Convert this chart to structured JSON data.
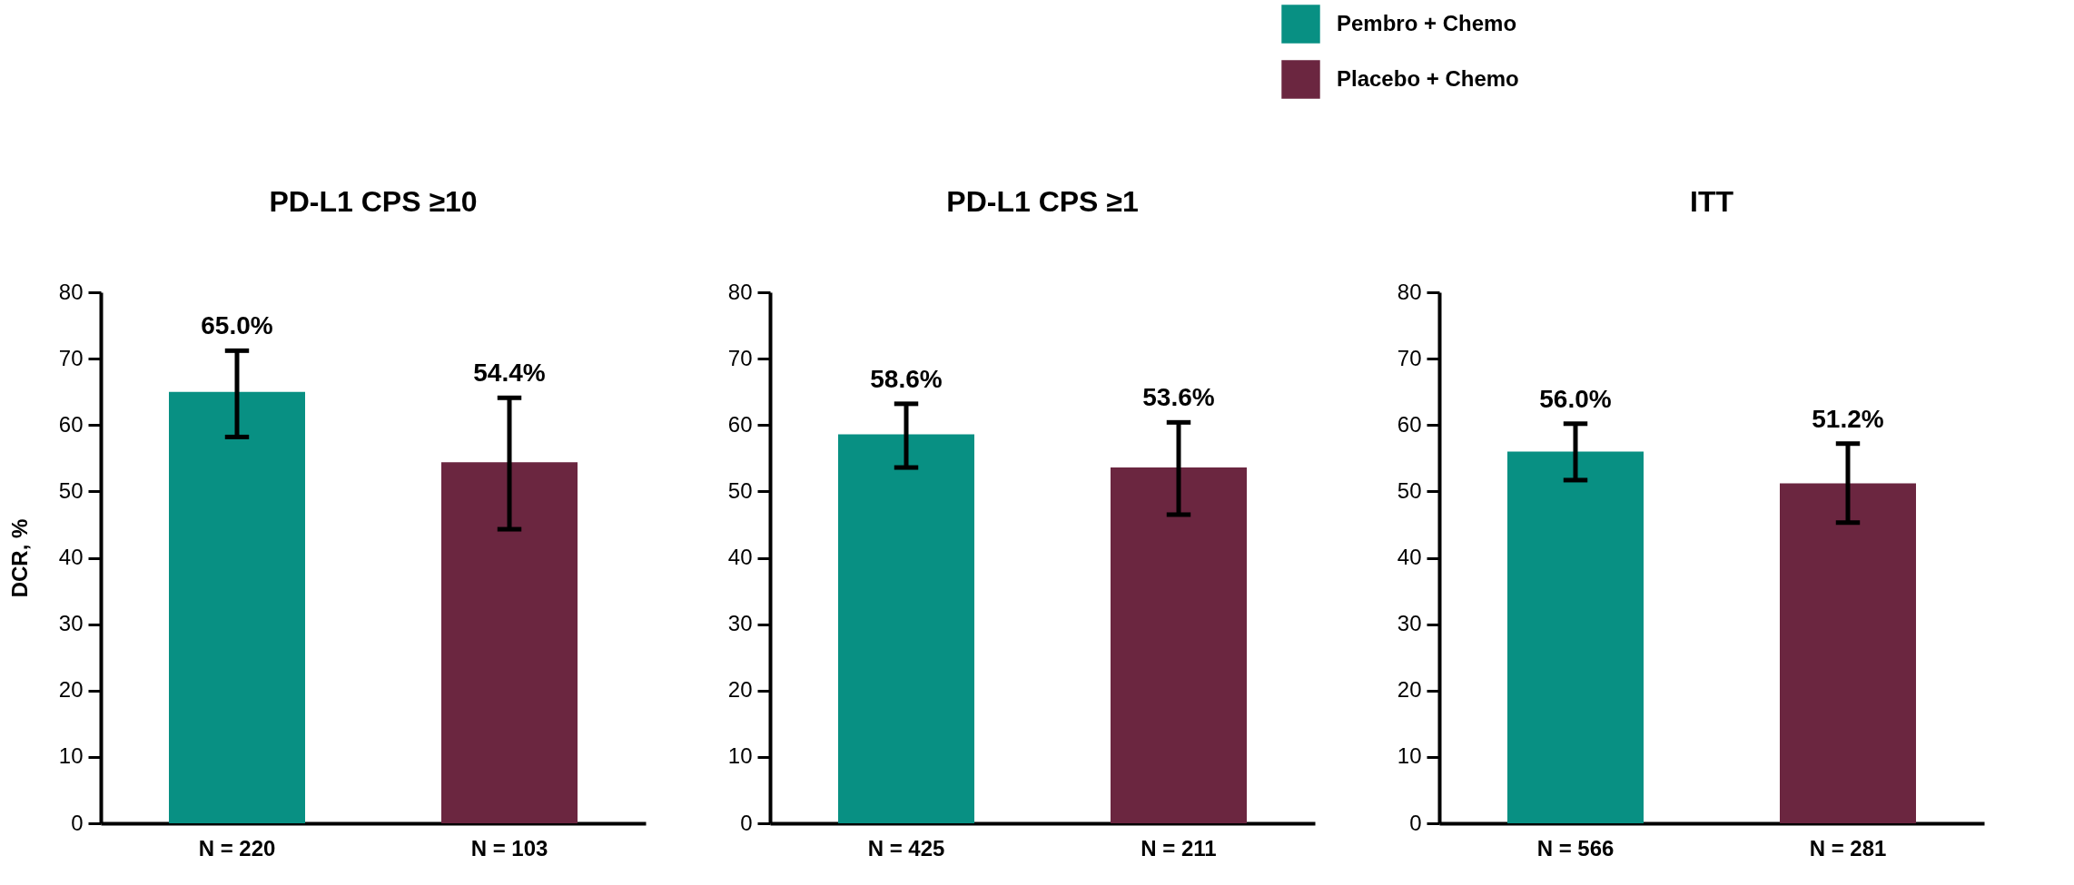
{
  "chart_data": [
    {
      "type": "bar",
      "title": "PD-L1 CPS ≥10",
      "ylabel": "DCR, %",
      "legend": "top right",
      "categories": [
        "N = 220",
        "N = 103"
      ],
      "ylim": [
        0,
        80
      ],
      "yticks": [
        0,
        10,
        20,
        30,
        40,
        50,
        60,
        70,
        80
      ],
      "series": [
        {
          "name": "Pembro + Chemo",
          "color": "#089083",
          "values": [
            65.0,
            null
          ],
          "errors": [
            [
              58.2,
              71.2
            ],
            null
          ],
          "value_labels": [
            "65.0%",
            null
          ]
        },
        {
          "name": "Placebo + Chemo",
          "color": "#6b2640",
          "values": [
            null,
            54.4
          ],
          "errors": [
            null,
            [
              44.3,
              64.1
            ]
          ],
          "value_labels": [
            null,
            "54.4%"
          ]
        }
      ]
    },
    {
      "type": "bar",
      "title": "PD-L1 CPS ≥1",
      "categories": [
        "N = 425",
        "N = 211"
      ],
      "ylim": [
        0,
        80
      ],
      "yticks": [
        0,
        10,
        20,
        30,
        40,
        50,
        60,
        70,
        80
      ],
      "series": [
        {
          "name": "Pembro + Chemo",
          "color": "#089083",
          "values": [
            58.6,
            null
          ],
          "errors": [
            [
              53.6,
              63.2
            ],
            null
          ],
          "value_labels": [
            "58.6%",
            null
          ]
        },
        {
          "name": "Placebo + Chemo",
          "color": "#6b2640",
          "values": [
            null,
            53.6
          ],
          "errors": [
            null,
            [
              46.5,
              60.4
            ]
          ],
          "value_labels": [
            null,
            "53.6%"
          ]
        }
      ]
    },
    {
      "type": "bar",
      "title": "ITT",
      "categories": [
        "N = 566",
        "N = 281"
      ],
      "ylim": [
        0,
        80
      ],
      "yticks": [
        0,
        10,
        20,
        30,
        40,
        50,
        60,
        70,
        80
      ],
      "series": [
        {
          "name": "Pembro + Chemo",
          "color": "#089083",
          "values": [
            56.0,
            null
          ],
          "errors": [
            [
              51.7,
              60.2
            ],
            null
          ],
          "value_labels": [
            "56.0%",
            null
          ]
        },
        {
          "name": "Placebo + Chemo",
          "color": "#6b2640",
          "values": [
            null,
            51.2
          ],
          "errors": [
            null,
            [
              45.3,
              57.2
            ]
          ],
          "value_labels": [
            null,
            "51.2%"
          ]
        }
      ]
    }
  ]
}
